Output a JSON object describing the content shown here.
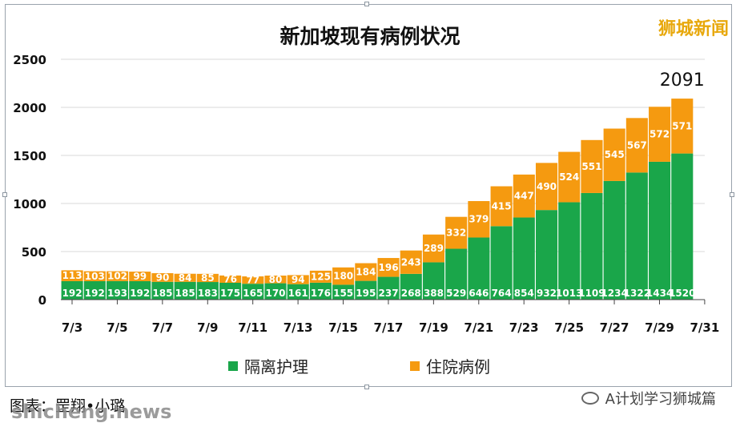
{
  "header": {
    "brand": "狮城新闻"
  },
  "footer": {
    "credit": "图表：罡翔•小璐",
    "watermark_site": "shicheng.news",
    "watermark_wechat": "A计划学习狮城篇"
  },
  "chart_data": {
    "type": "bar",
    "stacked": true,
    "title": "新加坡现有病例状况",
    "categories": [
      "7/3",
      "7/4",
      "7/5",
      "7/6",
      "7/7",
      "7/8",
      "7/9",
      "7/10",
      "7/11",
      "7/12",
      "7/13",
      "7/14",
      "7/15",
      "7/16",
      "7/17",
      "7/18",
      "7/19",
      "7/20",
      "7/21",
      "7/22",
      "7/23",
      "7/24",
      "7/25",
      "7/26",
      "7/27",
      "7/28",
      "7/29",
      "7/30"
    ],
    "xtick_labels": [
      "7/3",
      "7/5",
      "7/7",
      "7/9",
      "7/11",
      "7/13",
      "7/15",
      "7/17",
      "7/19",
      "7/21",
      "7/23",
      "7/25",
      "7/27",
      "7/29",
      "7/31"
    ],
    "series": [
      {
        "name": "隔离护理",
        "color": "#1aa64a",
        "values": [
          192,
          192,
          193,
          192,
          185,
          185,
          183,
          175,
          165,
          170,
          161,
          176,
          155,
          195,
          237,
          268,
          388,
          529,
          646,
          764,
          854,
          932,
          1013,
          1109,
          1234,
          1322,
          1434,
          1520
        ]
      },
      {
        "name": "住院病例",
        "color": "#f59a10",
        "values": [
          113,
          103,
          102,
          99,
          90,
          84,
          85,
          76,
          77,
          80,
          94,
          125,
          180,
          184,
          196,
          243,
          289,
          332,
          379,
          415,
          447,
          490,
          524,
          551,
          545,
          567,
          572,
          571
        ]
      }
    ],
    "total_annotation": {
      "category": "7/30",
      "text": "2091"
    },
    "ylim": [
      0,
      2500
    ],
    "yticks": [
      "0",
      "500",
      "1000",
      "1500",
      "2000",
      "2500"
    ],
    "grid": true,
    "legend": "bottom"
  }
}
